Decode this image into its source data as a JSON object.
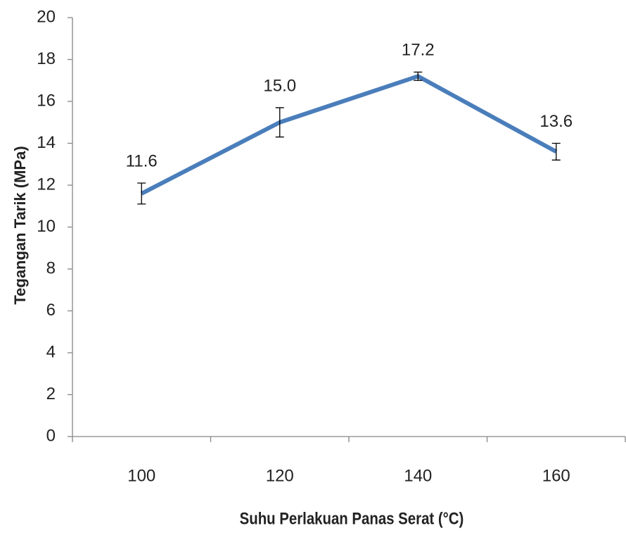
{
  "chart_data": {
    "type": "line",
    "x_label": "Suhu Perlakuan Panas Serat (°C)",
    "y_label": "Tegangan Tarik (MPa)",
    "categories": [
      "100",
      "120",
      "140",
      "160"
    ],
    "values": [
      11.6,
      15.0,
      17.2,
      13.6
    ],
    "value_labels": [
      "11.6",
      "15.0",
      "17.2",
      "13.6"
    ],
    "errors": [
      0.5,
      0.7,
      0.2,
      0.4
    ],
    "color": "#4a7ebb",
    "ylim": [
      0,
      20
    ],
    "yticks": [
      0,
      2,
      4,
      6,
      8,
      10,
      12,
      14,
      16,
      18,
      20
    ],
    "grid": false
  }
}
